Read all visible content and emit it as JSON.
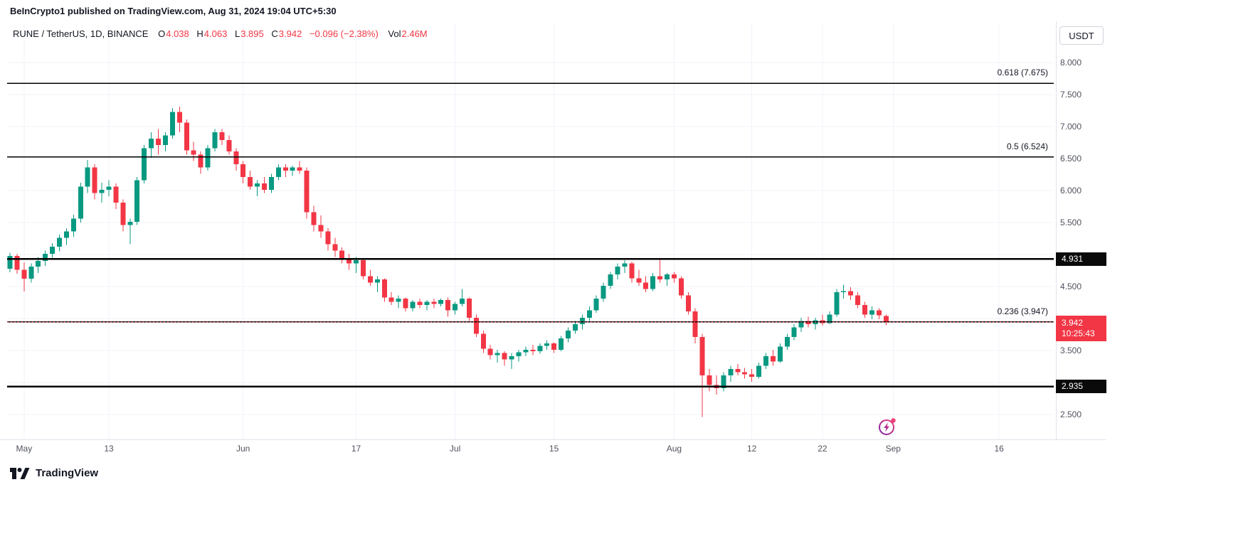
{
  "page": {
    "attribution_bar": "BeInCrypto1 published on TradingView.com, Aug 31, 2024 19:04 UTC+5:30",
    "footer_brand": "TradingView"
  },
  "legend": {
    "symbol": "RUNE / TetherUS, 1D, BINANCE",
    "o_label": "O",
    "o_value": "4.038",
    "h_label": "H",
    "h_value": "4.063",
    "l_label": "L",
    "l_value": "3.895",
    "c_label": "C",
    "c_value": "3.942",
    "change": "−0.096 (−2.38%)",
    "vol_label": "Vol",
    "vol_value": "2.46M"
  },
  "currency_button": "USDT",
  "axis_badges": {
    "level_upper": {
      "label": "4.931",
      "price": 4.931
    },
    "level_lower": {
      "label": "2.935",
      "price": 2.935
    },
    "current": {
      "price_label": "3.942",
      "countdown": "10:25:43",
      "price": 3.942
    }
  },
  "chart_data": {
    "type": "candlestick",
    "symbol": "RUNE / TetherUS",
    "exchange": "BINANCE",
    "interval": "1D",
    "start_date": "2024-04-29",
    "colors": {
      "up": "#089981",
      "down": "#f23645",
      "grid": "#f0f3fa"
    },
    "y_axis": {
      "range": [
        2.3,
        8.15
      ],
      "ticks": [
        {
          "label": "8.000",
          "price": 8.0
        },
        {
          "label": "7.500",
          "price": 7.5
        },
        {
          "label": "7.000",
          "price": 7.0
        },
        {
          "label": "6.500",
          "price": 6.5
        },
        {
          "label": "6.000",
          "price": 6.0
        },
        {
          "label": "5.500",
          "price": 5.5
        },
        {
          "label": "4.500",
          "price": 4.5
        },
        {
          "label": "3.500",
          "price": 3.5
        },
        {
          "label": "2.500",
          "price": 2.5
        }
      ],
      "grid_prices": [
        2.5,
        3.0,
        3.5,
        4.0,
        4.5,
        5.0,
        5.5,
        6.0,
        6.5,
        7.0,
        7.5,
        8.0
      ]
    },
    "x_axis": {
      "ticks": [
        {
          "label": "May",
          "day": 2
        },
        {
          "label": "13",
          "day": 14
        },
        {
          "label": "Jun",
          "day": 33
        },
        {
          "label": "17",
          "day": 49
        },
        {
          "label": "Jul",
          "day": 63
        },
        {
          "label": "15",
          "day": 77
        },
        {
          "label": "Aug",
          "day": 94
        },
        {
          "label": "12",
          "day": 105
        },
        {
          "label": "22",
          "day": 115
        },
        {
          "label": "Sep",
          "day": 125
        },
        {
          "label": "16",
          "day": 140
        }
      ]
    },
    "levels": [
      {
        "label": "0.618 (7.675)",
        "price": 7.675,
        "color": "#000000",
        "width": 1.5
      },
      {
        "label": "0.5 (6.524)",
        "price": 6.524,
        "color": "#000000",
        "width": 1.5
      },
      {
        "label": "",
        "price": 4.931,
        "color": "#000000",
        "width": 2.5
      },
      {
        "label": "0.236 (3.947)",
        "price": 3.947,
        "color": "#000000",
        "width": 1.5
      },
      {
        "label": "",
        "price": 2.935,
        "color": "#000000",
        "width": 2.5
      }
    ],
    "current_price_line": {
      "price": 3.942,
      "color": "#f23645"
    },
    "candles": [
      [
        4.78,
        5.03,
        4.72,
        4.98
      ],
      [
        4.98,
        5.01,
        4.7,
        4.76
      ],
      [
        4.76,
        4.88,
        4.42,
        4.62
      ],
      [
        4.62,
        4.86,
        4.56,
        4.81
      ],
      [
        4.81,
        4.96,
        4.71,
        4.9
      ],
      [
        4.9,
        5.06,
        4.82,
        5.01
      ],
      [
        5.01,
        5.18,
        4.95,
        5.12
      ],
      [
        5.12,
        5.31,
        5.05,
        5.26
      ],
      [
        5.26,
        5.41,
        5.15,
        5.36
      ],
      [
        5.36,
        5.62,
        5.28,
        5.56
      ],
      [
        5.56,
        6.12,
        5.5,
        6.06
      ],
      [
        6.06,
        6.48,
        5.96,
        6.36
      ],
      [
        6.36,
        6.41,
        5.86,
        5.96
      ],
      [
        5.96,
        6.12,
        5.81,
        6.01
      ],
      [
        6.01,
        6.16,
        5.91,
        6.06
      ],
      [
        6.06,
        6.11,
        5.71,
        5.81
      ],
      [
        5.81,
        5.86,
        5.36,
        5.46
      ],
      [
        5.46,
        5.56,
        5.16,
        5.51
      ],
      [
        5.51,
        6.21,
        5.46,
        6.16
      ],
      [
        6.16,
        6.71,
        6.11,
        6.66
      ],
      [
        6.66,
        6.91,
        6.51,
        6.81
      ],
      [
        6.81,
        6.96,
        6.56,
        6.71
      ],
      [
        6.71,
        6.91,
        6.61,
        6.86
      ],
      [
        6.86,
        7.29,
        6.81,
        7.23
      ],
      [
        7.23,
        7.31,
        6.91,
        7.06
      ],
      [
        7.06,
        7.11,
        6.56,
        6.63
      ],
      [
        6.63,
        6.76,
        6.46,
        6.56
      ],
      [
        6.56,
        6.61,
        6.26,
        6.36
      ],
      [
        6.36,
        6.71,
        6.31,
        6.66
      ],
      [
        6.66,
        6.96,
        6.61,
        6.91
      ],
      [
        6.91,
        6.96,
        6.71,
        6.79
      ],
      [
        6.79,
        6.86,
        6.56,
        6.61
      ],
      [
        6.61,
        6.66,
        6.31,
        6.41
      ],
      [
        6.41,
        6.46,
        6.11,
        6.21
      ],
      [
        6.21,
        6.31,
        6.01,
        6.06
      ],
      [
        6.06,
        6.16,
        5.91,
        6.11
      ],
      [
        6.11,
        6.21,
        5.96,
        6.01
      ],
      [
        6.01,
        6.26,
        5.96,
        6.21
      ],
      [
        6.21,
        6.41,
        6.16,
        6.36
      ],
      [
        6.36,
        6.41,
        6.21,
        6.31
      ],
      [
        6.31,
        6.39,
        6.23,
        6.36
      ],
      [
        6.36,
        6.46,
        6.26,
        6.31
      ],
      [
        6.31,
        6.36,
        5.56,
        5.66
      ],
      [
        5.66,
        5.76,
        5.36,
        5.46
      ],
      [
        5.46,
        5.61,
        5.26,
        5.36
      ],
      [
        5.36,
        5.41,
        5.06,
        5.16
      ],
      [
        5.16,
        5.26,
        4.96,
        5.06
      ],
      [
        5.06,
        5.11,
        4.86,
        4.93
      ],
      [
        4.93,
        5.01,
        4.76,
        4.86
      ],
      [
        4.86,
        4.96,
        4.71,
        4.91
      ],
      [
        4.91,
        4.93,
        4.61,
        4.66
      ],
      [
        4.66,
        4.76,
        4.51,
        4.56
      ],
      [
        4.56,
        4.66,
        4.41,
        4.61
      ],
      [
        4.61,
        4.63,
        4.26,
        4.33
      ],
      [
        4.33,
        4.41,
        4.21,
        4.26
      ],
      [
        4.26,
        4.36,
        4.16,
        4.31
      ],
      [
        4.31,
        4.33,
        4.11,
        4.16
      ],
      [
        4.16,
        4.29,
        4.11,
        4.26
      ],
      [
        4.26,
        4.31,
        4.16,
        4.21
      ],
      [
        4.21,
        4.29,
        4.13,
        4.26
      ],
      [
        4.26,
        4.31,
        4.16,
        4.23
      ],
      [
        4.23,
        4.31,
        4.19,
        4.29
      ],
      [
        4.29,
        4.33,
        4.03,
        4.13
      ],
      [
        4.13,
        4.26,
        4.06,
        4.23
      ],
      [
        4.23,
        4.46,
        4.19,
        4.31
      ],
      [
        4.31,
        4.33,
        3.96,
        4.01
      ],
      [
        4.01,
        4.06,
        3.71,
        3.76
      ],
      [
        3.76,
        3.81,
        3.46,
        3.53
      ],
      [
        3.53,
        3.59,
        3.36,
        3.43
      ],
      [
        3.43,
        3.51,
        3.31,
        3.46
      ],
      [
        3.46,
        3.49,
        3.26,
        3.36
      ],
      [
        3.36,
        3.46,
        3.21,
        3.41
      ],
      [
        3.41,
        3.51,
        3.33,
        3.47
      ],
      [
        3.47,
        3.56,
        3.41,
        3.51
      ],
      [
        3.51,
        3.59,
        3.43,
        3.49
      ],
      [
        3.49,
        3.61,
        3.45,
        3.57
      ],
      [
        3.57,
        3.66,
        3.51,
        3.61
      ],
      [
        3.61,
        3.63,
        3.46,
        3.51
      ],
      [
        3.51,
        3.73,
        3.49,
        3.69
      ],
      [
        3.69,
        3.86,
        3.63,
        3.81
      ],
      [
        3.81,
        3.96,
        3.76,
        3.91
      ],
      [
        3.91,
        4.06,
        3.83,
        4.01
      ],
      [
        4.01,
        4.19,
        3.96,
        4.13
      ],
      [
        4.13,
        4.36,
        4.09,
        4.31
      ],
      [
        4.31,
        4.56,
        4.26,
        4.51
      ],
      [
        4.51,
        4.73,
        4.46,
        4.69
      ],
      [
        4.69,
        4.86,
        4.61,
        4.81
      ],
      [
        4.81,
        4.91,
        4.71,
        4.86
      ],
      [
        4.86,
        4.89,
        4.56,
        4.63
      ],
      [
        4.63,
        4.76,
        4.51,
        4.56
      ],
      [
        4.56,
        4.66,
        4.41,
        4.46
      ],
      [
        4.46,
        4.71,
        4.43,
        4.66
      ],
      [
        4.66,
        4.93,
        4.56,
        4.61
      ],
      [
        4.61,
        4.71,
        4.51,
        4.69
      ],
      [
        4.69,
        4.73,
        4.56,
        4.63
      ],
      [
        4.63,
        4.66,
        4.31,
        4.36
      ],
      [
        4.36,
        4.41,
        4.06,
        4.11
      ],
      [
        4.11,
        4.16,
        3.61,
        3.71
      ],
      [
        3.71,
        3.76,
        2.46,
        3.11
      ],
      [
        3.11,
        3.21,
        2.86,
        2.96
      ],
      [
        2.96,
        3.11,
        2.81,
        2.91
      ],
      [
        2.91,
        3.16,
        2.86,
        3.11
      ],
      [
        3.11,
        3.26,
        3.01,
        3.21
      ],
      [
        3.21,
        3.29,
        3.11,
        3.16
      ],
      [
        3.16,
        3.23,
        3.06,
        3.13
      ],
      [
        3.13,
        3.21,
        3.01,
        3.09
      ],
      [
        3.09,
        3.31,
        3.06,
        3.26
      ],
      [
        3.26,
        3.46,
        3.21,
        3.41
      ],
      [
        3.41,
        3.51,
        3.26,
        3.33
      ],
      [
        3.33,
        3.61,
        3.31,
        3.56
      ],
      [
        3.56,
        3.76,
        3.51,
        3.71
      ],
      [
        3.71,
        3.91,
        3.66,
        3.86
      ],
      [
        3.86,
        4.01,
        3.79,
        3.96
      ],
      [
        3.96,
        4.03,
        3.86,
        3.91
      ],
      [
        3.91,
        4.01,
        3.83,
        3.97
      ],
      [
        3.97,
        4.06,
        3.89,
        3.93
      ],
      [
        3.93,
        4.11,
        3.91,
        4.06
      ],
      [
        4.06,
        4.46,
        4.03,
        4.41
      ],
      [
        4.41,
        4.53,
        4.31,
        4.43
      ],
      [
        4.43,
        4.49,
        4.29,
        4.36
      ],
      [
        4.36,
        4.41,
        4.16,
        4.21
      ],
      [
        4.21,
        4.26,
        4.01,
        4.06
      ],
      [
        4.06,
        4.19,
        3.99,
        4.13
      ],
      [
        4.13,
        4.16,
        3.99,
        4.05
      ],
      [
        4.038,
        4.063,
        3.895,
        3.942
      ]
    ]
  }
}
